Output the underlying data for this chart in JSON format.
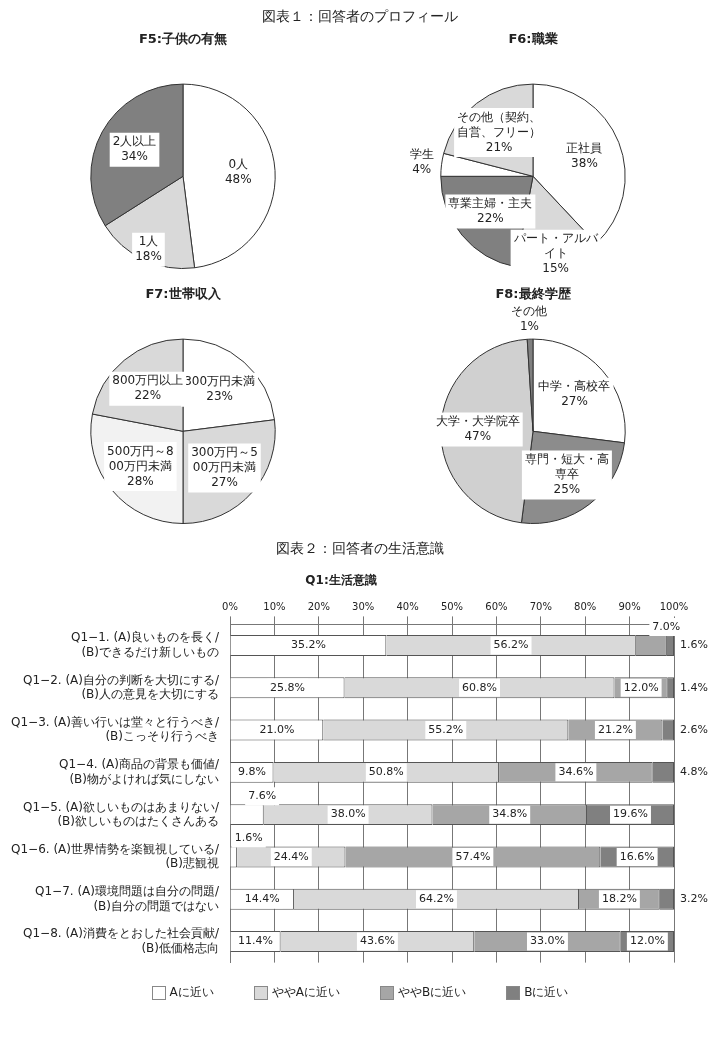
{
  "chart_data": [
    {
      "type": "other",
      "title": "図表１：回答者のプロフィール"
    },
    {
      "type": "pie",
      "title": "F5:子供の有無",
      "categories": [
        "0人",
        "1人",
        "2人以上"
      ],
      "values": [
        48,
        18,
        34
      ],
      "value_labels": [
        "48%",
        "18%",
        "34%"
      ],
      "colors": [
        "#ffffff",
        "#d9d9d9",
        "#808080"
      ]
    },
    {
      "type": "pie",
      "title": "F6:職業",
      "categories": [
        "正社員",
        "パート・アルバイト",
        "専業主婦・主夫",
        "学生",
        "その他（契約、自営、フリー）"
      ],
      "values": [
        38,
        15,
        22,
        4,
        21
      ],
      "value_labels": [
        "38%",
        "15%",
        "22%",
        "4%",
        "21%"
      ],
      "colors": [
        "#ffffff",
        "#d9d9d9",
        "#808080",
        "#ffffff",
        "#d9d9d9"
      ]
    },
    {
      "type": "pie",
      "title": "F7:世帯収入",
      "categories": [
        "300万円未満",
        "300万円～500万円未満",
        "500万円～800万円未満",
        "800万円以上"
      ],
      "values": [
        23,
        27,
        28,
        22
      ],
      "value_labels": [
        "23%",
        "27%",
        "28%",
        "22%"
      ],
      "colors": [
        "#ffffff",
        "#d9d9d9",
        "#f2f2f2",
        "#d9d9d9"
      ]
    },
    {
      "type": "pie",
      "title": "F8:最終学歴",
      "categories": [
        "中学・高校卒",
        "専門・短大・高専卒",
        "大学・大学院卒",
        "その他"
      ],
      "values": [
        27,
        25,
        47,
        1
      ],
      "value_labels": [
        "27%",
        "25%",
        "47%",
        "1%"
      ],
      "colors": [
        "#ffffff",
        "#8c8c8c",
        "#d0d0d0",
        "#808080"
      ]
    },
    {
      "type": "other",
      "title": "図表２：回答者の生活意識"
    },
    {
      "type": "bar",
      "title": "Q1:生活意識",
      "orientation": "horizontal",
      "stacked": true,
      "grid": "x",
      "legend": "bottom",
      "categories": [
        "Q1−1. (A)良いものを長く/\n(B)できるだけ新しいもの",
        "Q1−2. (A)自分の判断を大切にする/\n(B)人の意見を大切にする",
        "Q1−3. (A)善い行いは堂々と行うべき/\n(B)こっそり行うべき",
        "Q1−4. (A)商品の背景も価値/\n(B)物がよければ気にしない",
        "Q1−5. (A)欲しいものはあまりない/\n(B)欲しいものはたくさんある",
        "Q1−6. (A)世界情勢を楽観視している/\n(B)悲観視",
        "Q1−7. (A)環境問題は自分の問題/\n(B)自分の問題ではない",
        "Q1−8. (A)消費をとおした社会貢献/\n(B)低価格志向"
      ],
      "xlim": [
        0,
        100
      ],
      "xticks": [
        {
          "value": 0,
          "label": "0%"
        },
        {
          "value": 10,
          "label": "10%"
        },
        {
          "value": 20,
          "label": "20%"
        },
        {
          "value": 30,
          "label": "30%"
        },
        {
          "value": 40,
          "label": "40%"
        },
        {
          "value": 50,
          "label": "50%"
        },
        {
          "value": 60,
          "label": "60%"
        },
        {
          "value": 70,
          "label": "70%"
        },
        {
          "value": 80,
          "label": "80%"
        },
        {
          "value": 90,
          "label": "90%"
        },
        {
          "value": 100,
          "label": "100%"
        }
      ],
      "series": [
        {
          "name": "Aに近い",
          "color": "#ffffff",
          "values": [
            35.2,
            25.8,
            21.0,
            9.8,
            7.6,
            1.6,
            14.4,
            11.4
          ],
          "value_labels": [
            "35.2%",
            "25.8%",
            "21.0%",
            "9.8%",
            "7.6%",
            "1.6%",
            "14.4%",
            "11.4%"
          ]
        },
        {
          "name": "ややAに近い",
          "color": "#d9d9d9",
          "values": [
            56.2,
            60.8,
            55.2,
            50.8,
            38.0,
            24.4,
            64.2,
            43.6
          ],
          "value_labels": [
            "56.2%",
            "60.8%",
            "55.2%",
            "50.8%",
            "38.0%",
            "24.4%",
            "64.2%",
            "43.6%"
          ]
        },
        {
          "name": "ややBに近い",
          "color": "#a6a6a6",
          "values": [
            7.0,
            12.0,
            21.2,
            34.6,
            34.8,
            57.4,
            18.2,
            33.0
          ],
          "value_labels": [
            "7.0%",
            "12.0%",
            "21.2%",
            "34.6%",
            "34.8%",
            "57.4%",
            "18.2%",
            "33.0%"
          ]
        },
        {
          "name": "Bに近い",
          "color": "#808080",
          "values": [
            1.6,
            1.4,
            2.6,
            4.8,
            19.6,
            16.6,
            3.2,
            12.0
          ],
          "value_labels": [
            "1.6%",
            "1.4%",
            "2.6%",
            "4.8%",
            "19.6%",
            "16.6%",
            "3.2%",
            "12.0%"
          ]
        }
      ]
    }
  ]
}
